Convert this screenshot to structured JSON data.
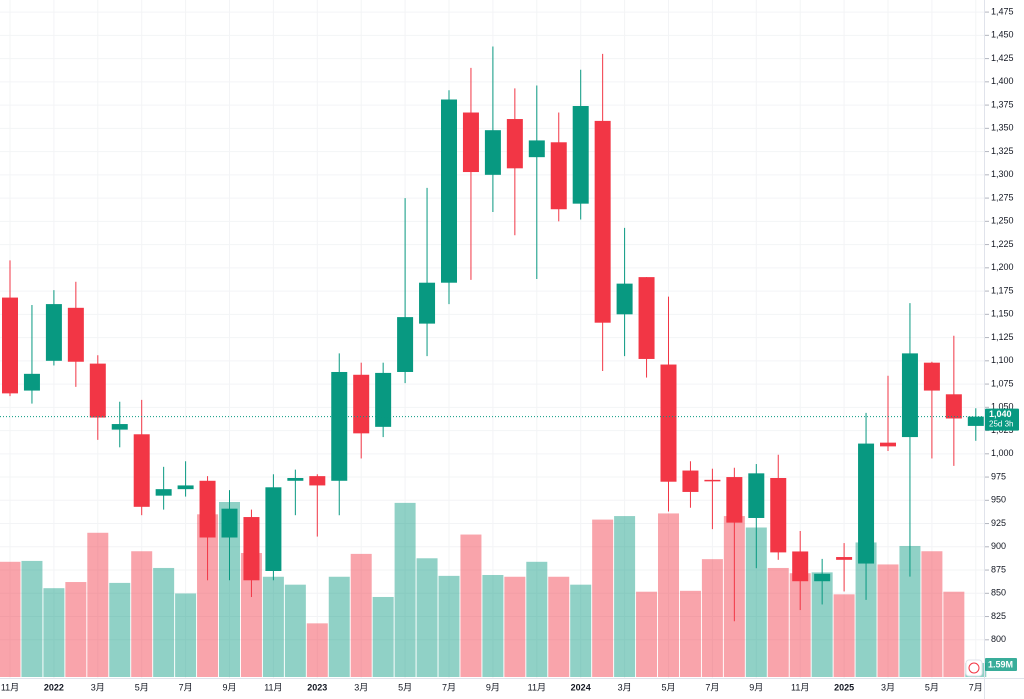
{
  "chart_data": {
    "type": "candlestick",
    "categories": [
      "11月",
      null,
      "2022",
      null,
      "3月",
      null,
      "5月",
      null,
      "7月",
      null,
      "9月",
      null,
      "11月",
      null,
      "2023",
      null,
      "3月",
      null,
      "5月",
      null,
      "7月",
      null,
      "9月",
      null,
      "11月",
      null,
      "2024",
      null,
      "3月",
      null,
      "5月",
      null,
      "7月",
      null,
      "9月",
      null,
      "11月",
      null,
      "2025",
      null,
      "3月",
      null,
      "5月",
      null,
      "7月"
    ],
    "open": [
      1168,
      1068,
      1100,
      1157,
      1097,
      1026,
      1021,
      955,
      962,
      971,
      910,
      932,
      874,
      971,
      976,
      971,
      1085,
      1029,
      1088,
      1140,
      1184,
      1367,
      1300,
      1360,
      1319,
      1335,
      1269,
      1358,
      1150,
      1190,
      1096,
      982,
      972,
      975,
      931,
      974,
      895,
      863,
      889,
      882,
      1012,
      1018,
      1098,
      1064,
      1030
    ],
    "high": [
      1208,
      1160,
      1176,
      1185,
      1106,
      1056,
      1058,
      986,
      992,
      976,
      961,
      940,
      978,
      983,
      978,
      1108,
      1098,
      1098,
      1275,
      1286,
      1391,
      1415,
      1438,
      1393,
      1396,
      1367,
      1413,
      1430,
      1243,
      1190,
      1169,
      992,
      984,
      985,
      989,
      999,
      917,
      887,
      904,
      1044,
      1084,
      1162,
      1099,
      1127,
      1049
    ],
    "low": [
      1062,
      1054,
      1095,
      1072,
      1015,
      1007,
      934,
      940,
      954,
      864,
      864,
      846,
      864,
      934,
      911,
      934,
      995,
      1018,
      1076,
      1105,
      1161,
      1187,
      1260,
      1235,
      1188,
      1250,
      1252,
      1089,
      1105,
      1082,
      938,
      942,
      919,
      820,
      877,
      886,
      832,
      838,
      852,
      843,
      1003,
      868,
      995,
      987,
      1014
    ],
    "close": [
      1065,
      1086,
      1161,
      1099,
      1039,
      1032,
      943,
      962,
      966,
      910,
      941,
      864,
      964,
      974,
      966,
      1088,
      1022,
      1087,
      1147,
      1184,
      1381,
      1303,
      1348,
      1307,
      1337,
      1263,
      1374,
      1141,
      1183,
      1102,
      970,
      959,
      971,
      926,
      979,
      894,
      863,
      871,
      886,
      1011,
      1008,
      1108,
      1068,
      1038,
      1040
    ],
    "volume": [
      13.1,
      13.2,
      10.1,
      10.8,
      16.4,
      10.7,
      14.3,
      12.4,
      9.5,
      18.5,
      19.9,
      14.1,
      11.4,
      10.5,
      6.1,
      11.4,
      14.0,
      9.1,
      19.8,
      13.5,
      11.5,
      16.2,
      11.6,
      11.4,
      13.1,
      11.4,
      10.5,
      17.9,
      18.3,
      9.7,
      18.6,
      9.8,
      13.4,
      18.3,
      17.0,
      12.4,
      11.8,
      11.9,
      9.4,
      15.3,
      12.8,
      14.9,
      14.3,
      9.7,
      1.59
    ],
    "up_color": "#089981",
    "down_color": "#f23645",
    "ylim": [
      760,
      1488
    ],
    "yticks": [
      {
        "value": 800,
        "label": "800"
      },
      {
        "value": 825,
        "label": "825"
      },
      {
        "value": 850,
        "label": "850"
      },
      {
        "value": 875,
        "label": "875"
      },
      {
        "value": 900,
        "label": "900"
      },
      {
        "value": 925,
        "label": "925"
      },
      {
        "value": 950,
        "label": "950"
      },
      {
        "value": 975,
        "label": "975"
      },
      {
        "value": 1000,
        "label": "1,000"
      },
      {
        "value": 1025,
        "label": "1,025"
      },
      {
        "value": 1050,
        "label": "1,050"
      },
      {
        "value": 1075,
        "label": "1,075"
      },
      {
        "value": 1100,
        "label": "1,100"
      },
      {
        "value": 1125,
        "label": "1,125"
      },
      {
        "value": 1150,
        "label": "1,150"
      },
      {
        "value": 1175,
        "label": "1,175"
      },
      {
        "value": 1200,
        "label": "1,200"
      },
      {
        "value": 1225,
        "label": "1,225"
      },
      {
        "value": 1250,
        "label": "1,250"
      },
      {
        "value": 1275,
        "label": "1,275"
      },
      {
        "value": 1300,
        "label": "1,300"
      },
      {
        "value": 1325,
        "label": "1,325"
      },
      {
        "value": 1350,
        "label": "1,350"
      },
      {
        "value": 1375,
        "label": "1,375"
      },
      {
        "value": 1400,
        "label": "1,400"
      },
      {
        "value": 1425,
        "label": "1,425"
      },
      {
        "value": 1450,
        "label": "1,450"
      },
      {
        "value": 1475,
        "label": "1,475"
      }
    ],
    "grid": true,
    "price_tag": "1,040",
    "countdown": "25d 3h",
    "volume_tag": "1.59M"
  }
}
